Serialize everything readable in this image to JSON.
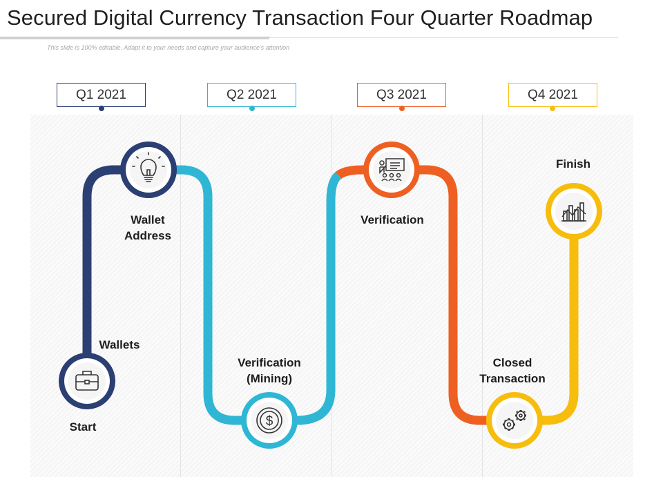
{
  "title": "Secured Digital Currency Transaction Four Quarter Roadmap",
  "subtitle": "This slide is 100% editable. Adapt it to your needs and capture your audience's attention",
  "colors": {
    "navy": "#2b3f73",
    "cyan": "#2fb6d4",
    "orange": "#ee5f22",
    "yellow": "#f7bd0d"
  },
  "quarters": [
    {
      "label": "Q1 2021",
      "color": "#2b3f73"
    },
    {
      "label": "Q2 2021",
      "color": "#2fb6d4"
    },
    {
      "label": "Q3 2021",
      "color": "#ee5f22"
    },
    {
      "label": "Q4 2021",
      "color": "#f7bd0d"
    }
  ],
  "labels": {
    "start": "Start",
    "wallets": "Wallets",
    "wallet_address_1": "Wallet",
    "wallet_address_2": "Address",
    "mining_1": "Verification",
    "mining_2": "(Mining)",
    "verification": "Verification",
    "closed_1": "Closed",
    "closed_2": "Transaction",
    "finish": "Finish"
  },
  "milestones": [
    {
      "name": "wallets",
      "icon": "briefcase-icon"
    },
    {
      "name": "wallet-address",
      "icon": "lightbulb-icon"
    },
    {
      "name": "verification-mining",
      "icon": "dollar-coin-icon"
    },
    {
      "name": "verification",
      "icon": "presentation-board-icon"
    },
    {
      "name": "closed-transaction",
      "icon": "gears-icon"
    },
    {
      "name": "finish",
      "icon": "bar-chart-icon"
    }
  ]
}
